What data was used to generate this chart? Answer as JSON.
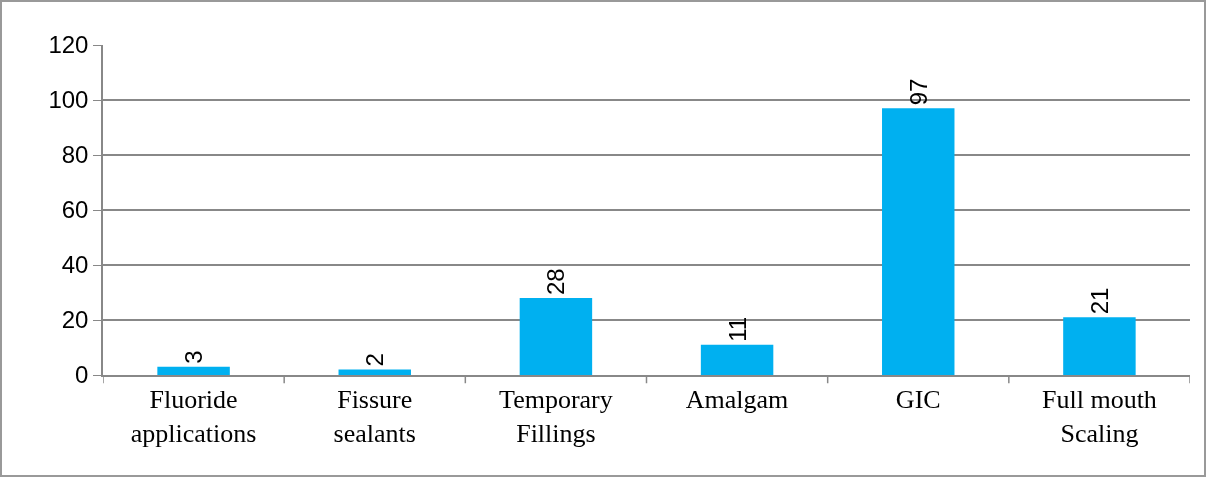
{
  "chart_data": {
    "type": "bar",
    "categories": [
      "Fluoride applications",
      "Fissure sealants",
      "Temporary Fillings",
      "Amalgam",
      "GIC",
      "Full mouth Scaling"
    ],
    "values": [
      3,
      2,
      28,
      11,
      97,
      21
    ],
    "color": "#00b0f0",
    "ylim": [
      0,
      120
    ],
    "yticks": [
      0,
      20,
      40,
      60,
      80,
      100,
      120
    ],
    "grid": "y",
    "data_labels": true,
    "legend": false
  }
}
